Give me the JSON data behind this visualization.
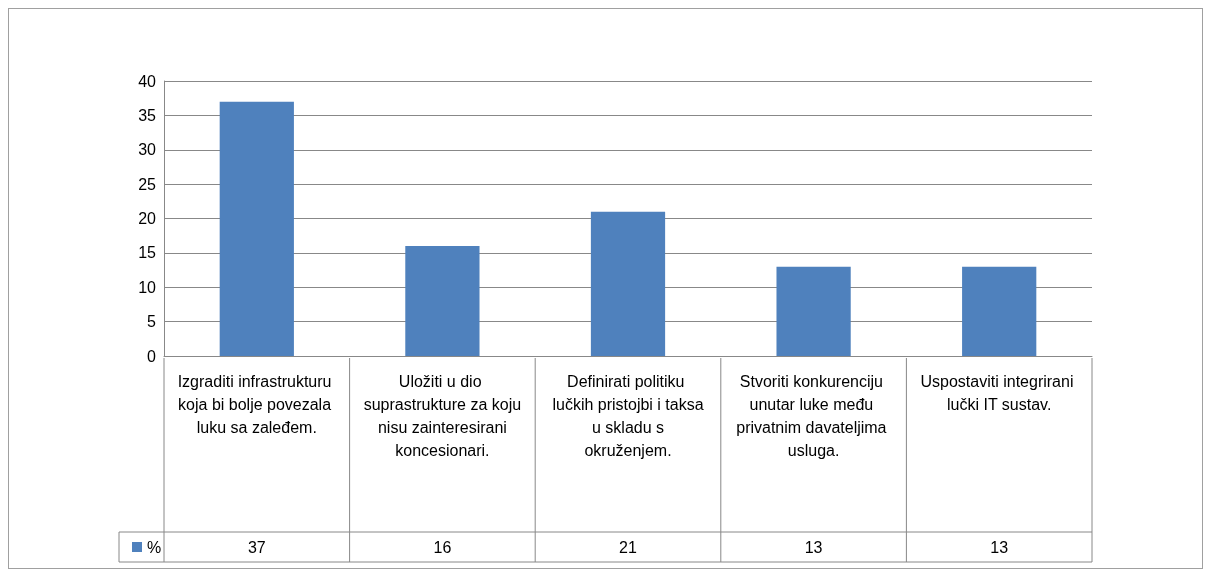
{
  "chart_data": {
    "type": "bar",
    "categories": [
      "Izgraditi infrastrukturu koja bi bolje povezala luku sa zaleđem.",
      "Uložiti u dio suprastrukture za koju nisu zainteresirani koncesionari.",
      "Definirati politiku lučkih pristojbi i taksa u skladu s okruženjem.",
      "Stvoriti konkurenciju unutar luke među privatnim davateljima usluga.",
      "Uspostaviti integrirani lučki IT sustav."
    ],
    "series": [
      {
        "name": "%",
        "color": "#4f81bd",
        "values": [
          37,
          16,
          21,
          13,
          13
        ]
      }
    ],
    "ylim": [
      0,
      40
    ],
    "yticks": [
      0,
      5,
      10,
      15,
      20,
      25,
      30,
      35,
      40
    ],
    "grid": "y",
    "legend": "bottom left",
    "data_labels": true
  }
}
